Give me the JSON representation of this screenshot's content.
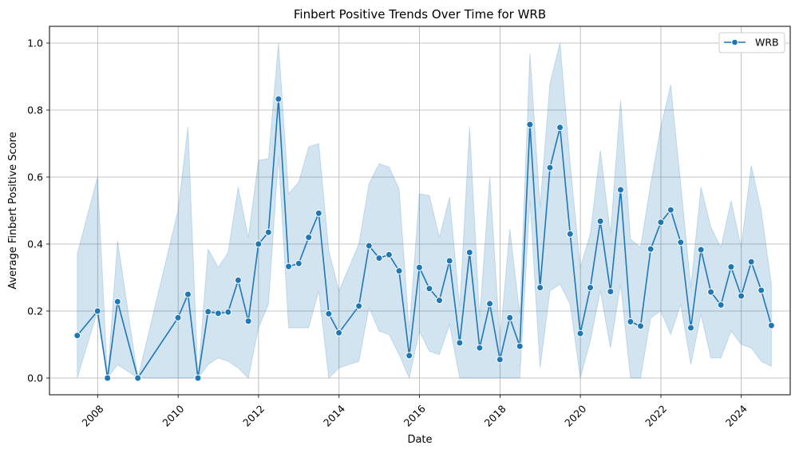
{
  "chart_data": {
    "type": "line",
    "title": "Finbert Positive Trends Over Time for WRB",
    "xlabel": "Date",
    "ylabel": "Average Finbert Positive Score",
    "xlim": [
      "2006-10-21",
      "2025-03-20"
    ],
    "ylim": [
      -0.05,
      1.05
    ],
    "x_ticks": [
      "2008",
      "2010",
      "2012",
      "2014",
      "2016",
      "2018",
      "2020",
      "2022",
      "2024"
    ],
    "y_ticks": [
      "0.0",
      "0.2",
      "0.4",
      "0.6",
      "0.8",
      "1.0"
    ],
    "grid": true,
    "legend_position": "top-right",
    "colors": {
      "line": "#1f77b4",
      "band": "#1f77b4",
      "grid": "#b0b0b0"
    },
    "series": [
      {
        "name": "WRB",
        "points": [
          {
            "x": "2007-06-30",
            "y": 0.127,
            "lo": 0.0,
            "hi": 0.37
          },
          {
            "x": "2007-12-31",
            "y": 0.2,
            "lo": 0.2,
            "hi": 0.6
          },
          {
            "x": "2008-03-31",
            "y": 0.0,
            "lo": 0.0,
            "hi": 0.0
          },
          {
            "x": "2008-06-30",
            "y": 0.228,
            "lo": 0.04,
            "hi": 0.41
          },
          {
            "x": "2008-12-31",
            "y": 0.0,
            "lo": 0.0,
            "hi": 0.0
          },
          {
            "x": "2009-12-31",
            "y": 0.18,
            "lo": 0.0,
            "hi": 0.5
          },
          {
            "x": "2010-03-31",
            "y": 0.25,
            "lo": 0.0,
            "hi": 0.75
          },
          {
            "x": "2010-06-30",
            "y": 0.0,
            "lo": 0.0,
            "hi": 0.0
          },
          {
            "x": "2010-09-30",
            "y": 0.198,
            "lo": 0.04,
            "hi": 0.385
          },
          {
            "x": "2010-12-31",
            "y": 0.193,
            "lo": 0.06,
            "hi": 0.33
          },
          {
            "x": "2011-03-31",
            "y": 0.197,
            "lo": 0.05,
            "hi": 0.375
          },
          {
            "x": "2011-06-30",
            "y": 0.292,
            "lo": 0.03,
            "hi": 0.57
          },
          {
            "x": "2011-09-30",
            "y": 0.17,
            "lo": 0.0,
            "hi": 0.42
          },
          {
            "x": "2011-12-31",
            "y": 0.4,
            "lo": 0.15,
            "hi": 0.65
          },
          {
            "x": "2012-03-31",
            "y": 0.435,
            "lo": 0.22,
            "hi": 0.655
          },
          {
            "x": "2012-06-30",
            "y": 0.833,
            "lo": 0.66,
            "hi": 1.0
          },
          {
            "x": "2012-09-30",
            "y": 0.333,
            "lo": 0.15,
            "hi": 0.55
          },
          {
            "x": "2012-12-31",
            "y": 0.342,
            "lo": 0.15,
            "hi": 0.585
          },
          {
            "x": "2013-03-31",
            "y": 0.42,
            "lo": 0.15,
            "hi": 0.69
          },
          {
            "x": "2013-06-30",
            "y": 0.492,
            "lo": 0.26,
            "hi": 0.7
          },
          {
            "x": "2013-09-30",
            "y": 0.192,
            "lo": 0.0,
            "hi": 0.38
          },
          {
            "x": "2013-12-31",
            "y": 0.135,
            "lo": 0.03,
            "hi": 0.26
          },
          {
            "x": "2014-06-30",
            "y": 0.215,
            "lo": 0.05,
            "hi": 0.4
          },
          {
            "x": "2014-09-30",
            "y": 0.395,
            "lo": 0.21,
            "hi": 0.58
          },
          {
            "x": "2014-12-31",
            "y": 0.358,
            "lo": 0.14,
            "hi": 0.64
          },
          {
            "x": "2015-03-31",
            "y": 0.368,
            "lo": 0.13,
            "hi": 0.63
          },
          {
            "x": "2015-06-30",
            "y": 0.32,
            "lo": 0.07,
            "hi": 0.565
          },
          {
            "x": "2015-09-30",
            "y": 0.067,
            "lo": 0.0,
            "hi": 0.14
          },
          {
            "x": "2015-12-31",
            "y": 0.33,
            "lo": 0.14,
            "hi": 0.55
          },
          {
            "x": "2016-03-31",
            "y": 0.267,
            "lo": 0.08,
            "hi": 0.545
          },
          {
            "x": "2016-06-30",
            "y": 0.232,
            "lo": 0.07,
            "hi": 0.42
          },
          {
            "x": "2016-09-30",
            "y": 0.35,
            "lo": 0.16,
            "hi": 0.54
          },
          {
            "x": "2016-12-31",
            "y": 0.105,
            "lo": 0.0,
            "hi": 0.21
          },
          {
            "x": "2017-03-31",
            "y": 0.375,
            "lo": 0.0,
            "hi": 0.75
          },
          {
            "x": "2017-06-30",
            "y": 0.09,
            "lo": 0.0,
            "hi": 0.18
          },
          {
            "x": "2017-09-30",
            "y": 0.222,
            "lo": 0.0,
            "hi": 0.6
          },
          {
            "x": "2017-12-31",
            "y": 0.055,
            "lo": 0.0,
            "hi": 0.11
          },
          {
            "x": "2018-03-31",
            "y": 0.18,
            "lo": 0.0,
            "hi": 0.445
          },
          {
            "x": "2018-06-30",
            "y": 0.095,
            "lo": 0.0,
            "hi": 0.19
          },
          {
            "x": "2018-09-30",
            "y": 0.757,
            "lo": 0.53,
            "hi": 0.97
          },
          {
            "x": "2018-12-31",
            "y": 0.27,
            "lo": 0.03,
            "hi": 0.51
          },
          {
            "x": "2019-03-31",
            "y": 0.628,
            "lo": 0.26,
            "hi": 0.88
          },
          {
            "x": "2019-06-30",
            "y": 0.748,
            "lo": 0.28,
            "hi": 1.0
          },
          {
            "x": "2019-09-30",
            "y": 0.43,
            "lo": 0.22,
            "hi": 0.64
          },
          {
            "x": "2019-12-31",
            "y": 0.133,
            "lo": 0.0,
            "hi": 0.33
          },
          {
            "x": "2020-03-31",
            "y": 0.27,
            "lo": 0.11,
            "hi": 0.43
          },
          {
            "x": "2020-06-30",
            "y": 0.468,
            "lo": 0.26,
            "hi": 0.68
          },
          {
            "x": "2020-09-30",
            "y": 0.258,
            "lo": 0.09,
            "hi": 0.43
          },
          {
            "x": "2020-12-31",
            "y": 0.562,
            "lo": 0.28,
            "hi": 0.83
          },
          {
            "x": "2021-03-31",
            "y": 0.168,
            "lo": 0.0,
            "hi": 0.415
          },
          {
            "x": "2021-06-30",
            "y": 0.155,
            "lo": 0.0,
            "hi": 0.39
          },
          {
            "x": "2021-09-30",
            "y": 0.385,
            "lo": 0.18,
            "hi": 0.58
          },
          {
            "x": "2021-12-31",
            "y": 0.465,
            "lo": 0.2,
            "hi": 0.75
          },
          {
            "x": "2022-03-31",
            "y": 0.502,
            "lo": 0.13,
            "hi": 0.875
          },
          {
            "x": "2022-06-30",
            "y": 0.405,
            "lo": 0.22,
            "hi": 0.58
          },
          {
            "x": "2022-09-30",
            "y": 0.15,
            "lo": 0.04,
            "hi": 0.27
          },
          {
            "x": "2022-12-31",
            "y": 0.383,
            "lo": 0.19,
            "hi": 0.57
          },
          {
            "x": "2023-03-31",
            "y": 0.257,
            "lo": 0.06,
            "hi": 0.45
          },
          {
            "x": "2023-06-30",
            "y": 0.218,
            "lo": 0.06,
            "hi": 0.39
          },
          {
            "x": "2023-09-30",
            "y": 0.332,
            "lo": 0.14,
            "hi": 0.53
          },
          {
            "x": "2023-12-31",
            "y": 0.245,
            "lo": 0.1,
            "hi": 0.39
          },
          {
            "x": "2024-03-31",
            "y": 0.347,
            "lo": 0.09,
            "hi": 0.635
          },
          {
            "x": "2024-06-30",
            "y": 0.262,
            "lo": 0.05,
            "hi": 0.5
          },
          {
            "x": "2024-09-30",
            "y": 0.157,
            "lo": 0.035,
            "hi": 0.28
          }
        ]
      }
    ]
  }
}
